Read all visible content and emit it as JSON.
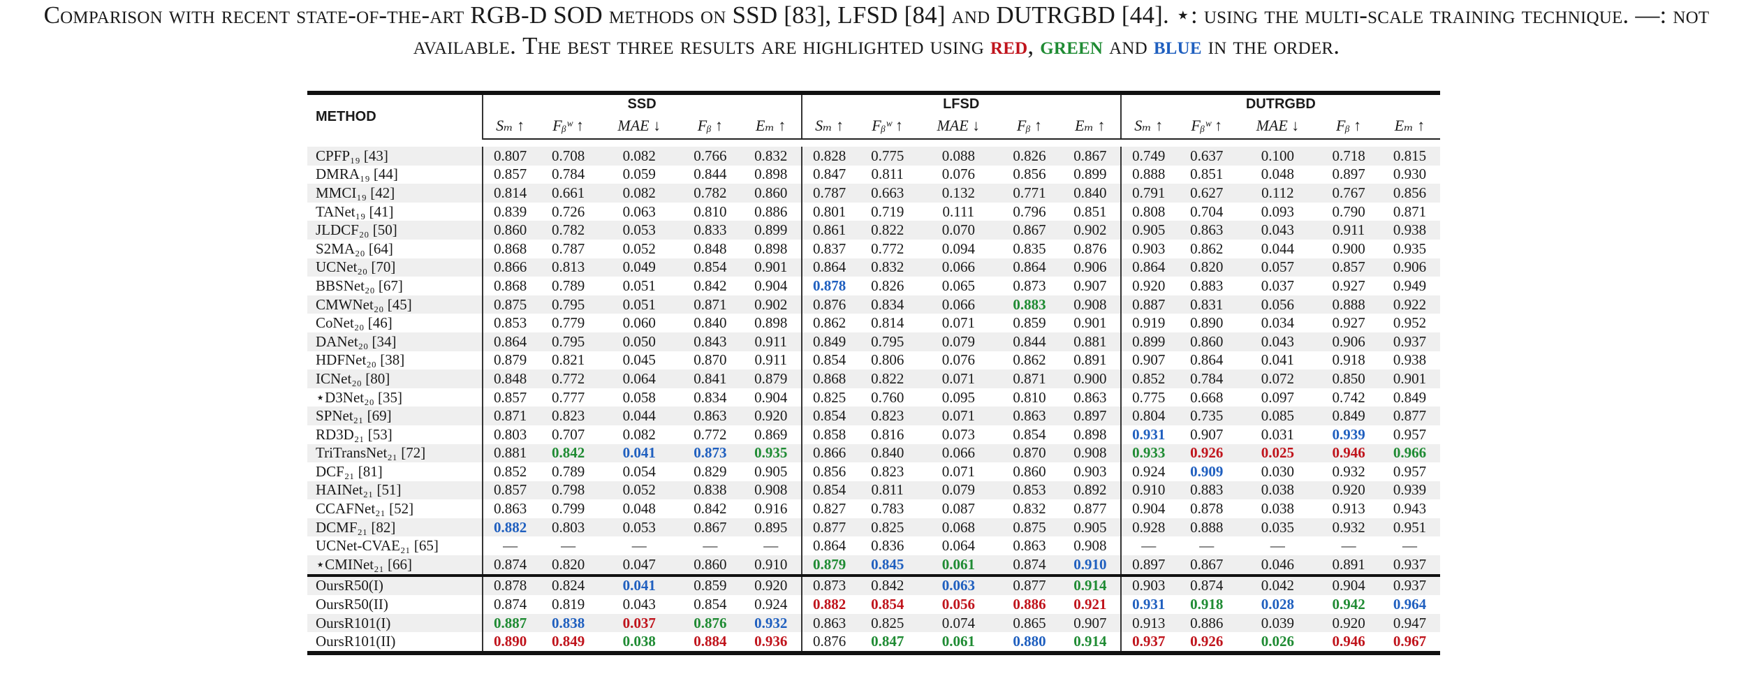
{
  "caption": {
    "part1": "Comparison with recent state-of-the-art ",
    "big1": "RGB-D SOD",
    "part2": " methods on ",
    "big2": "SSD [83], LFSD [84]",
    "part3": " and ",
    "big3": "DUTRGBD [44].",
    "part4": " ⋆: using the multi-scale training technique. —: not available. ",
    "big4": "T",
    "part5": "he best three results are highlighted using ",
    "red": "red",
    "comma": ", ",
    "green": "green",
    "and": " and ",
    "blue": "blue",
    "end": " in the order."
  },
  "table": {
    "method_header": "METHOD",
    "groups": [
      "SSD",
      "LFSD",
      "DUTRGBD"
    ],
    "metrics": [
      "Sₘ ↑",
      "Fᵦʷ ↑",
      "MAE ↓",
      "Fᵦ ↑",
      "Eₘ ↑"
    ],
    "rows": [
      {
        "method": "CPFP₁₉ [43]",
        "v": [
          "0.807",
          "0.708",
          "0.082",
          "0.766",
          "0.832",
          "0.828",
          "0.775",
          "0.088",
          "0.826",
          "0.867",
          "0.749",
          "0.637",
          "0.100",
          "0.718",
          "0.815"
        ]
      },
      {
        "method": "DMRA₁₉ [44]",
        "v": [
          "0.857",
          "0.784",
          "0.059",
          "0.844",
          "0.898",
          "0.847",
          "0.811",
          "0.076",
          "0.856",
          "0.899",
          "0.888",
          "0.851",
          "0.048",
          "0.897",
          "0.930"
        ]
      },
      {
        "method": "MMCI₁₉ [42]",
        "v": [
          "0.814",
          "0.661",
          "0.082",
          "0.782",
          "0.860",
          "0.787",
          "0.663",
          "0.132",
          "0.771",
          "0.840",
          "0.791",
          "0.627",
          "0.112",
          "0.767",
          "0.856"
        ]
      },
      {
        "method": "TANet₁₉ [41]",
        "v": [
          "0.839",
          "0.726",
          "0.063",
          "0.810",
          "0.886",
          "0.801",
          "0.719",
          "0.111",
          "0.796",
          "0.851",
          "0.808",
          "0.704",
          "0.093",
          "0.790",
          "0.871"
        ]
      },
      {
        "method": "JLDCF₂₀ [50]",
        "v": [
          "0.860",
          "0.782",
          "0.053",
          "0.833",
          "0.899",
          "0.861",
          "0.822",
          "0.070",
          "0.867",
          "0.902",
          "0.905",
          "0.863",
          "0.043",
          "0.911",
          "0.938"
        ]
      },
      {
        "method": "S2MA₂₀ [64]",
        "v": [
          "0.868",
          "0.787",
          "0.052",
          "0.848",
          "0.898",
          "0.837",
          "0.772",
          "0.094",
          "0.835",
          "0.876",
          "0.903",
          "0.862",
          "0.044",
          "0.900",
          "0.935"
        ]
      },
      {
        "method": "UCNet₂₀ [70]",
        "v": [
          "0.866",
          "0.813",
          "0.049",
          "0.854",
          "0.901",
          "0.864",
          "0.832",
          "0.066",
          "0.864",
          "0.906",
          "0.864",
          "0.820",
          "0.057",
          "0.857",
          "0.906"
        ]
      },
      {
        "method": "BBSNet₂₀ [67]",
        "v": [
          "0.868",
          "0.789",
          "0.051",
          "0.842",
          "0.904",
          "0.878",
          "0.826",
          "0.065",
          "0.873",
          "0.907",
          "0.920",
          "0.883",
          "0.037",
          "0.927",
          "0.949"
        ],
        "hl": {
          "5": "blue"
        }
      },
      {
        "method": "CMWNet₂₀ [45]",
        "v": [
          "0.875",
          "0.795",
          "0.051",
          "0.871",
          "0.902",
          "0.876",
          "0.834",
          "0.066",
          "0.883",
          "0.908",
          "0.887",
          "0.831",
          "0.056",
          "0.888",
          "0.922"
        ],
        "hl": {
          "8": "green"
        }
      },
      {
        "method": "CoNet₂₀ [46]",
        "v": [
          "0.853",
          "0.779",
          "0.060",
          "0.840",
          "0.898",
          "0.862",
          "0.814",
          "0.071",
          "0.859",
          "0.901",
          "0.919",
          "0.890",
          "0.034",
          "0.927",
          "0.952"
        ]
      },
      {
        "method": "DANet₂₀ [34]",
        "v": [
          "0.864",
          "0.795",
          "0.050",
          "0.843",
          "0.911",
          "0.849",
          "0.795",
          "0.079",
          "0.844",
          "0.881",
          "0.899",
          "0.860",
          "0.043",
          "0.906",
          "0.937"
        ]
      },
      {
        "method": "HDFNet₂₀ [38]",
        "v": [
          "0.879",
          "0.821",
          "0.045",
          "0.870",
          "0.911",
          "0.854",
          "0.806",
          "0.076",
          "0.862",
          "0.891",
          "0.907",
          "0.864",
          "0.041",
          "0.918",
          "0.938"
        ]
      },
      {
        "method": "ICNet₂₀ [80]",
        "v": [
          "0.848",
          "0.772",
          "0.064",
          "0.841",
          "0.879",
          "0.868",
          "0.822",
          "0.071",
          "0.871",
          "0.900",
          "0.852",
          "0.784",
          "0.072",
          "0.850",
          "0.901"
        ]
      },
      {
        "method": "⋆D3Net₂₀ [35]",
        "v": [
          "0.857",
          "0.777",
          "0.058",
          "0.834",
          "0.904",
          "0.825",
          "0.760",
          "0.095",
          "0.810",
          "0.863",
          "0.775",
          "0.668",
          "0.097",
          "0.742",
          "0.849"
        ]
      },
      {
        "method": "SPNet₂₁ [69]",
        "v": [
          "0.871",
          "0.823",
          "0.044",
          "0.863",
          "0.920",
          "0.854",
          "0.823",
          "0.071",
          "0.863",
          "0.897",
          "0.804",
          "0.735",
          "0.085",
          "0.849",
          "0.877"
        ]
      },
      {
        "method": "RD3D₂₁ [53]",
        "v": [
          "0.803",
          "0.707",
          "0.082",
          "0.772",
          "0.869",
          "0.858",
          "0.816",
          "0.073",
          "0.854",
          "0.898",
          "0.931",
          "0.907",
          "0.031",
          "0.939",
          "0.957"
        ],
        "hl": {
          "10": "blue",
          "13": "blue"
        }
      },
      {
        "method": "TriTransNet₂₁ [72]",
        "v": [
          "0.881",
          "0.842",
          "0.041",
          "0.873",
          "0.935",
          "0.866",
          "0.840",
          "0.066",
          "0.870",
          "0.908",
          "0.933",
          "0.926",
          "0.025",
          "0.946",
          "0.966"
        ],
        "hl": {
          "1": "green",
          "2": "blue",
          "3": "blue",
          "4": "green",
          "10": "green",
          "11": "red",
          "12": "red",
          "13": "red",
          "14": "green"
        }
      },
      {
        "method": "DCF₂₁ [81]",
        "v": [
          "0.852",
          "0.789",
          "0.054",
          "0.829",
          "0.905",
          "0.856",
          "0.823",
          "0.071",
          "0.860",
          "0.903",
          "0.924",
          "0.909",
          "0.030",
          "0.932",
          "0.957"
        ],
        "hl": {
          "11": "blue"
        }
      },
      {
        "method": "HAINet₂₁ [51]",
        "v": [
          "0.857",
          "0.798",
          "0.052",
          "0.838",
          "0.908",
          "0.854",
          "0.811",
          "0.079",
          "0.853",
          "0.892",
          "0.910",
          "0.883",
          "0.038",
          "0.920",
          "0.939"
        ]
      },
      {
        "method": "CCAFNet₂₁ [52]",
        "v": [
          "0.863",
          "0.799",
          "0.048",
          "0.842",
          "0.916",
          "0.827",
          "0.783",
          "0.087",
          "0.832",
          "0.877",
          "0.904",
          "0.878",
          "0.038",
          "0.913",
          "0.943"
        ]
      },
      {
        "method": "DCMF₂₁ [82]",
        "v": [
          "0.882",
          "0.803",
          "0.053",
          "0.867",
          "0.895",
          "0.877",
          "0.825",
          "0.068",
          "0.875",
          "0.905",
          "0.928",
          "0.888",
          "0.035",
          "0.932",
          "0.951"
        ],
        "hl": {
          "0": "blue"
        }
      },
      {
        "method": "UCNet-CVAE₂₁ [65]",
        "v": [
          "—",
          "—",
          "—",
          "—",
          "—",
          "0.864",
          "0.836",
          "0.064",
          "0.863",
          "0.908",
          "—",
          "—",
          "—",
          "—",
          "—"
        ]
      },
      {
        "method": "⋆CMINet₂₁ [66]",
        "v": [
          "0.874",
          "0.820",
          "0.047",
          "0.860",
          "0.910",
          "0.879",
          "0.845",
          "0.061",
          "0.874",
          "0.910",
          "0.897",
          "0.867",
          "0.046",
          "0.891",
          "0.937"
        ],
        "hl": {
          "5": "green",
          "6": "blue",
          "7": "green",
          "9": "blue"
        }
      }
    ],
    "ours": [
      {
        "method": "OursR50(I)",
        "v": [
          "0.878",
          "0.824",
          "0.041",
          "0.859",
          "0.920",
          "0.873",
          "0.842",
          "0.063",
          "0.877",
          "0.914",
          "0.903",
          "0.874",
          "0.042",
          "0.904",
          "0.937"
        ],
        "hl": {
          "2": "blue",
          "7": "blue",
          "9": "green"
        }
      },
      {
        "method": "OursR50(II)",
        "v": [
          "0.874",
          "0.819",
          "0.043",
          "0.854",
          "0.924",
          "0.882",
          "0.854",
          "0.056",
          "0.886",
          "0.921",
          "0.931",
          "0.918",
          "0.028",
          "0.942",
          "0.964"
        ],
        "hl": {
          "5": "red",
          "6": "red",
          "7": "red",
          "8": "red",
          "9": "red",
          "10": "blue",
          "11": "green",
          "12": "blue",
          "13": "green",
          "14": "blue"
        }
      },
      {
        "method": "OursR101(I)",
        "v": [
          "0.887",
          "0.838",
          "0.037",
          "0.876",
          "0.932",
          "0.863",
          "0.825",
          "0.074",
          "0.865",
          "0.907",
          "0.913",
          "0.886",
          "0.039",
          "0.920",
          "0.947"
        ],
        "hl": {
          "0": "green",
          "1": "blue",
          "2": "red",
          "3": "green",
          "4": "blue"
        }
      },
      {
        "method": "OursR101(II)",
        "v": [
          "0.890",
          "0.849",
          "0.038",
          "0.884",
          "0.936",
          "0.876",
          "0.847",
          "0.061",
          "0.880",
          "0.914",
          "0.937",
          "0.926",
          "0.026",
          "0.946",
          "0.967"
        ],
        "hl": {
          "0": "red",
          "1": "red",
          "2": "green",
          "3": "red",
          "4": "red",
          "6": "green",
          "7": "green",
          "8": "blue",
          "9": "green",
          "10": "red",
          "11": "red",
          "12": "green",
          "13": "red",
          "14": "red"
        }
      }
    ]
  }
}
